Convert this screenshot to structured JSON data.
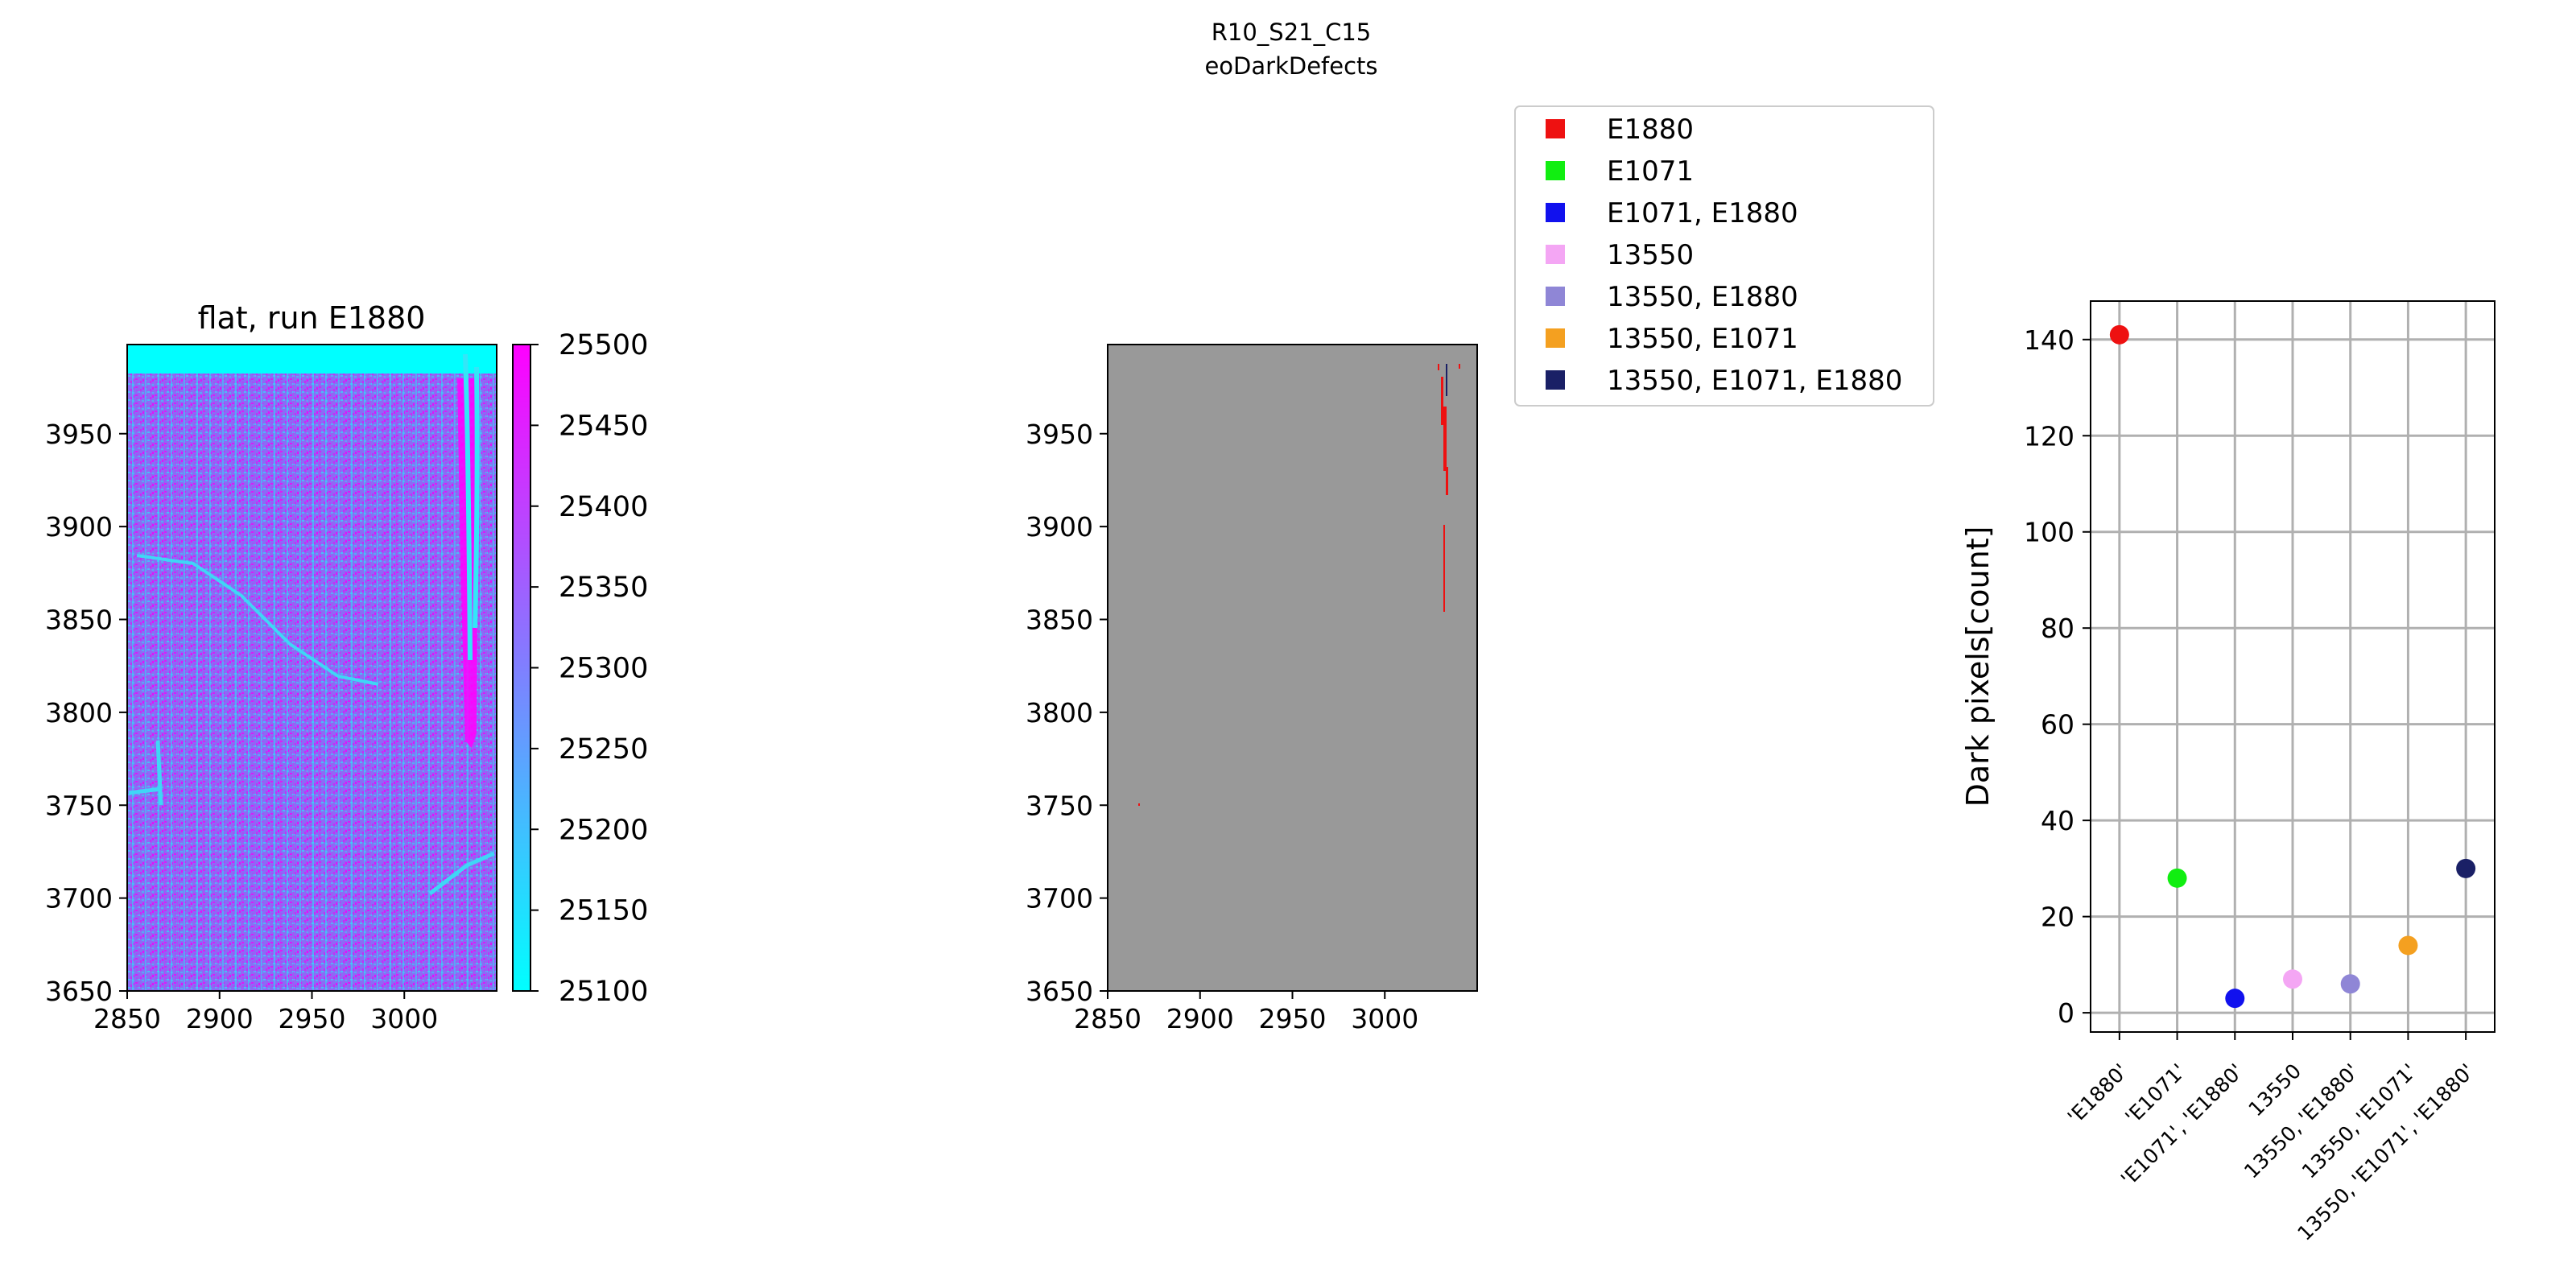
{
  "suptitle": {
    "line1": "R10_S21_C15",
    "line2": "eoDarkDefects"
  },
  "chart_data": [
    {
      "type": "heatmap",
      "title": "flat, run E1880",
      "xlim": [
        2850,
        3050
      ],
      "ylim": [
        3650,
        3998
      ],
      "xticks": [
        "2850",
        "2900",
        "2950",
        "3000"
      ],
      "yticks": [
        "3650",
        "3700",
        "3750",
        "3800",
        "3850",
        "3900",
        "3950"
      ],
      "colormap": [
        "#00ffff",
        "#ff00ff"
      ],
      "colorbar": {
        "range": [
          25100,
          25500
        ],
        "ticks": [
          "25100",
          "25150",
          "25200",
          "25250",
          "25300",
          "25350",
          "25400",
          "25450",
          "25500"
        ]
      }
    },
    {
      "type": "heatmap",
      "xlim": [
        2850,
        3050
      ],
      "ylim": [
        3650,
        3998
      ],
      "xticks": [
        "2850",
        "2900",
        "2950",
        "3000"
      ],
      "yticks": [
        "3650",
        "3700",
        "3750",
        "3800",
        "3850",
        "3900",
        "3950"
      ],
      "background_color": "#999999",
      "legend_placement": "top-center",
      "legend": [
        {
          "label": "E1880",
          "color": "#ee1111"
        },
        {
          "label": "E1071",
          "color": "#11ee11"
        },
        {
          "label": "E1071, E1880",
          "color": "#1111ee"
        },
        {
          "label": "13550",
          "color": "#f4a6f4"
        },
        {
          "label": "13550, E1880",
          "color": "#8f86d6"
        },
        {
          "label": "13550, E1071",
          "color": "#f4a020"
        },
        {
          "label": "13550, E1071, E1880",
          "color": "#1a2066"
        }
      ]
    },
    {
      "type": "scatter",
      "ylabel": "Dark pixels[count]",
      "ylim": [
        -4,
        148
      ],
      "yticks": [
        "0",
        "20",
        "40",
        "60",
        "80",
        "100",
        "120",
        "140"
      ],
      "grid": true,
      "categories": [
        "'E1880'",
        "'E1071'",
        "'E1071', 'E1880'",
        "13550",
        "13550, 'E1880'",
        "13550, 'E1071'",
        "13550, 'E1071', 'E1880'"
      ],
      "values": [
        141,
        28,
        3,
        7,
        6,
        14,
        30
      ],
      "colors": [
        "#ee1111",
        "#11ee11",
        "#1111ee",
        "#f4a6f4",
        "#8f86d6",
        "#f4a020",
        "#1a2066"
      ]
    }
  ]
}
